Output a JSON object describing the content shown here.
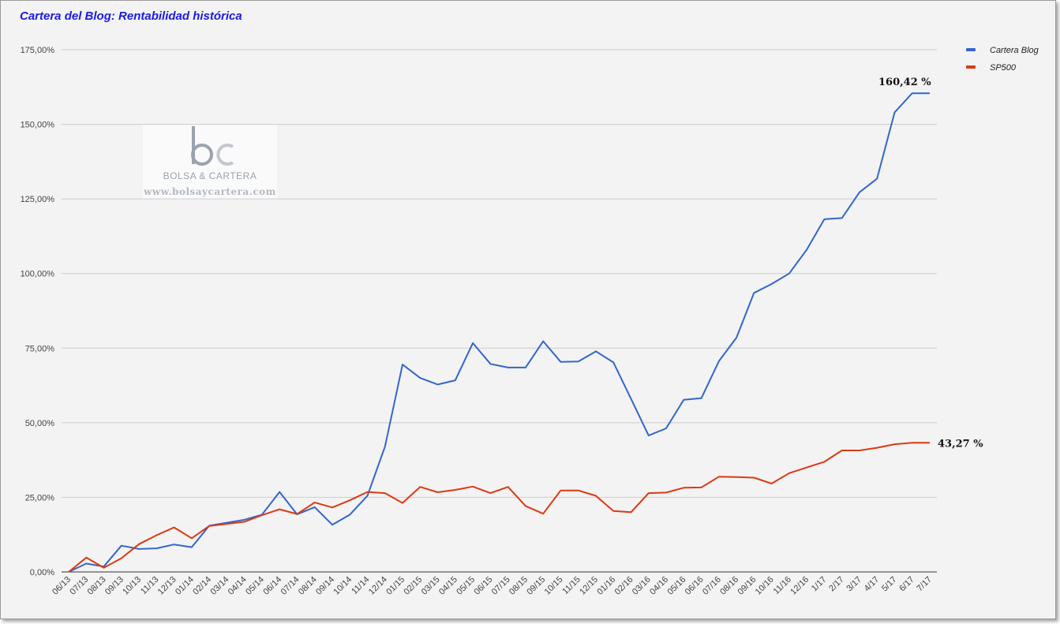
{
  "chart_data": {
    "type": "line",
    "title": "Cartera del Blog: Rentabilidad histórica",
    "xlabel": "",
    "ylabel": "",
    "ylim": [
      0,
      175
    ],
    "yticks": [
      "0,00%",
      "25,00%",
      "50,00%",
      "75,00%",
      "100,00%",
      "125,00%",
      "150,00%",
      "175,00%"
    ],
    "ytick_values": [
      0,
      25,
      50,
      75,
      100,
      125,
      150,
      175
    ],
    "grid": true,
    "legend_position": "top-right",
    "categories": [
      "06/13",
      "07/13",
      "08/13",
      "09/13",
      "10/13",
      "11/13",
      "12/13",
      "01/14",
      "02/14",
      "03/14",
      "04/14",
      "05/14",
      "06/14",
      "07/14",
      "08/14",
      "09/14",
      "10/14",
      "11/14",
      "12/14",
      "01/15",
      "02/15",
      "03/15",
      "04/15",
      "05/15",
      "06/15",
      "07/15",
      "08/15",
      "09/15",
      "10/15",
      "11/15",
      "12/15",
      "01/16",
      "02/16",
      "03/16",
      "04/16",
      "05/16",
      "06/16",
      "07/16",
      "08/16",
      "09/16",
      "10/16",
      "11/16",
      "12/16",
      "1/17",
      "2/17",
      "3/17",
      "4/17",
      "5/17",
      "6/17",
      "7/17"
    ],
    "series": [
      {
        "name": "Cartera Blog",
        "color": "#3366cc",
        "values": [
          0,
          2.8,
          1.8,
          8.8,
          7.7,
          7.9,
          9.2,
          8.3,
          15.5,
          16.5,
          17.5,
          19.2,
          26.8,
          19.3,
          21.7,
          15.8,
          19.2,
          25.5,
          42.0,
          69.5,
          65.0,
          62.8,
          64.2,
          76.7,
          69.7,
          68.5,
          68.5,
          77.3,
          70.4,
          70.5,
          73.9,
          70.2,
          58.0,
          45.7,
          48.1,
          57.7,
          58.2,
          70.6,
          78.5,
          93.5,
          96.5,
          100.0,
          108.0,
          118.2,
          118.6,
          127.2,
          131.8,
          154.0,
          160.42,
          160.42
        ]
      },
      {
        "name": "SP500",
        "color": "#dc3912",
        "values": [
          0,
          4.8,
          1.4,
          4.6,
          9.3,
          12.3,
          14.9,
          11.3,
          15.4,
          16.1,
          16.8,
          19.0,
          21.0,
          19.4,
          23.3,
          21.6,
          24.0,
          26.8,
          26.4,
          23.1,
          28.5,
          26.7,
          27.5,
          28.6,
          26.4,
          28.5,
          22.1,
          19.5,
          27.3,
          27.3,
          25.5,
          20.4,
          20.0,
          26.4,
          26.6,
          28.2,
          28.3,
          31.9,
          31.8,
          31.6,
          29.6,
          33.1,
          35.0,
          36.9,
          40.7,
          40.7,
          41.6,
          42.8,
          43.27,
          43.27
        ]
      }
    ],
    "annotations": [
      {
        "series": "Cartera Blog",
        "text": "160,42 %"
      },
      {
        "series": "SP500",
        "text": "43,27 %"
      }
    ]
  },
  "watermark": {
    "name": "BOLSA & CARTERA",
    "url": "www.bolsaycartera.com"
  }
}
